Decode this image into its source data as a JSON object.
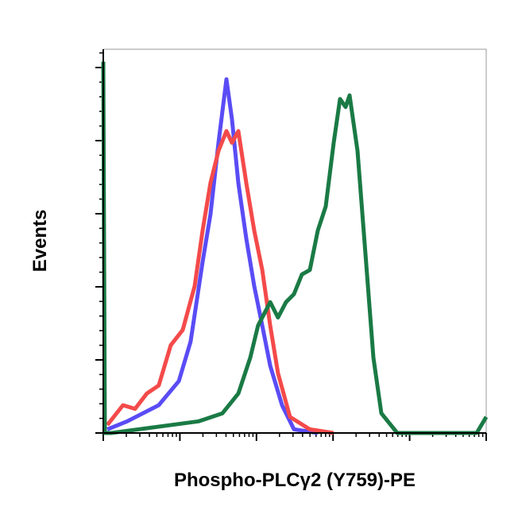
{
  "chart_data": {
    "type": "line",
    "xlabel": "Phospho-PLCγ2 (Y759)-PE",
    "ylabel": "Events",
    "xscale": "log",
    "xlim": [
      1,
      100000
    ],
    "xticks": [
      1,
      10,
      100,
      1000,
      10000,
      100000
    ],
    "xminorticks": [
      2,
      3,
      4,
      5,
      6,
      7,
      8,
      9,
      20,
      30,
      40,
      50,
      60,
      70,
      80,
      90,
      200,
      300,
      400,
      500,
      600,
      700,
      800,
      900,
      2000,
      3000,
      4000,
      5000,
      6000,
      7000,
      8000,
      9000,
      20000,
      30000,
      40000,
      50000,
      60000,
      70000,
      80000,
      90000
    ],
    "ylim": [
      0,
      525
    ],
    "yticks": [
      0,
      100,
      200,
      300,
      400,
      500
    ],
    "yminorticks": [
      20,
      40,
      60,
      80,
      120,
      140,
      160,
      180,
      220,
      240,
      260,
      280,
      320,
      340,
      360,
      380,
      420,
      440,
      460,
      480,
      520
    ],
    "series": [
      {
        "color": "#5a4cf5",
        "x": [
          1.13,
          2.05,
          5.3,
          9.7,
          13.8,
          19.8,
          25.1,
          31.9,
          40.5,
          47.9,
          58,
          73.6,
          93.5,
          119,
          151,
          216,
          309,
          632
        ],
        "values": [
          5,
          16,
          38,
          71,
          125,
          234,
          299,
          397,
          484,
          429,
          342,
          266,
          201,
          147,
          92,
          38,
          5,
          0
        ]
      },
      {
        "color": "#f44a4a",
        "x": [
          1.13,
          1.81,
          2.6,
          3.7,
          5.3,
          7.6,
          10.9,
          15.6,
          19.8,
          25.1,
          31.9,
          40.5,
          47.9,
          58,
          73.6,
          93.5,
          119,
          151,
          191,
          274,
          497,
          1010
        ],
        "values": [
          11,
          38,
          33,
          54,
          65,
          120,
          141,
          201,
          277,
          342,
          386,
          413,
          397,
          413,
          342,
          277,
          223,
          147,
          82,
          22,
          5,
          0
        ]
      },
      {
        "color": "#1a7a45",
        "x": [
          1,
          1.05,
          1.27,
          17.6,
          36,
          58,
          83,
          105,
          151,
          191,
          243,
          309,
          392,
          498,
          632,
          803,
          1019,
          1233,
          1459,
          1644,
          2088,
          2650,
          3365,
          4274,
          6890,
          75100,
          100000
        ],
        "values": [
          508,
          0,
          0,
          16,
          27,
          54,
          103,
          147,
          179,
          158,
          179,
          190,
          217,
          223,
          277,
          310,
          397,
          457,
          446,
          462,
          386,
          245,
          103,
          27,
          0,
          0,
          22
        ]
      }
    ]
  }
}
